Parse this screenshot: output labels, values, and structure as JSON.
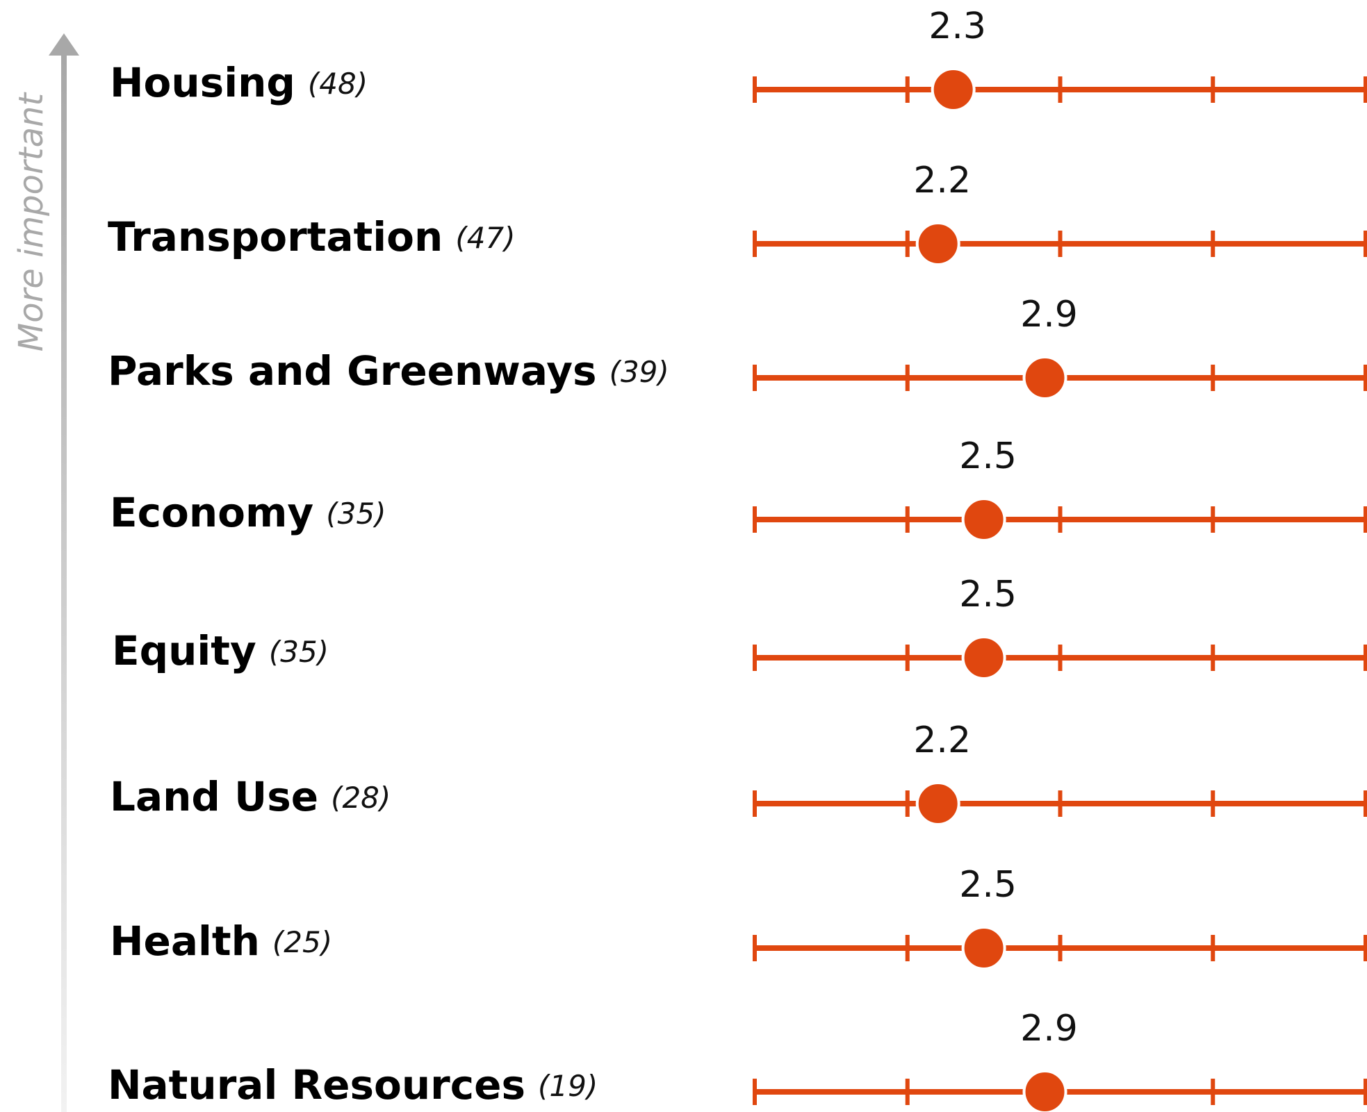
{
  "chart_data": {
    "type": "dot",
    "axis_label": "More important",
    "categories": [
      "Housing",
      "Transportation",
      "Parks and Greenways",
      "Economy",
      "Equity",
      "Land Use",
      "Health",
      "Natural Resources"
    ],
    "count_labels": [
      "(48)",
      "(47)",
      "(39)",
      "(35)",
      "(35)",
      "(28)",
      "(25)",
      "(19)"
    ],
    "values": [
      2.3,
      2.2,
      2.9,
      2.5,
      2.5,
      2.2,
      2.5,
      2.9
    ],
    "color": "#e0470f",
    "xlim": [
      1,
      5
    ],
    "xticks": [
      1,
      2,
      3,
      4,
      5
    ]
  }
}
